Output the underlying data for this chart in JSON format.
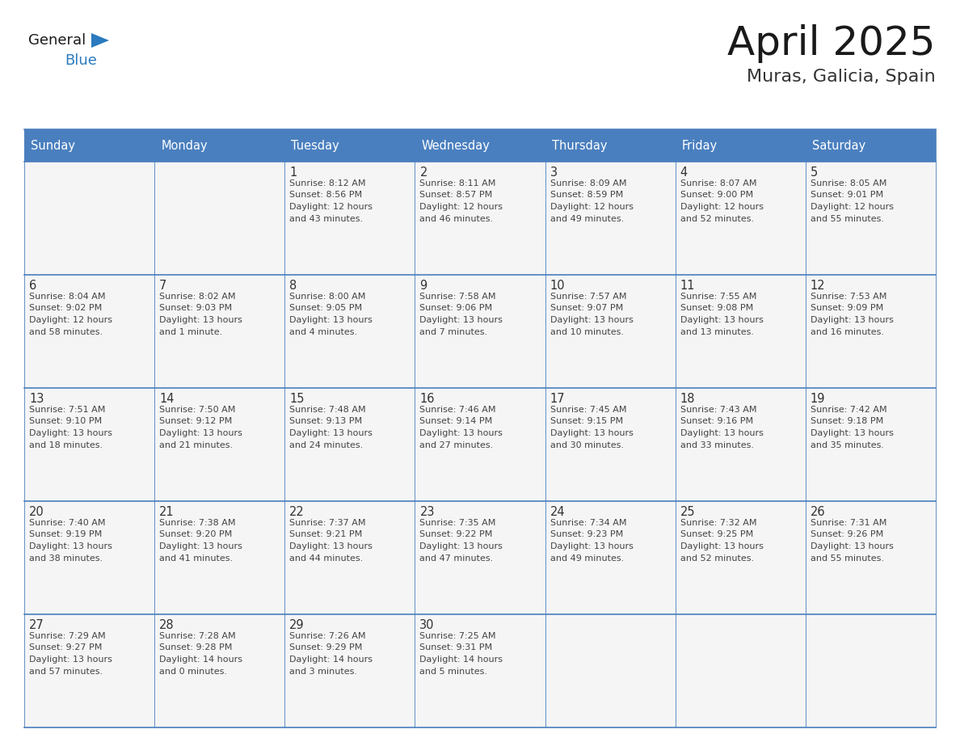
{
  "title": "April 2025",
  "subtitle": "Muras, Galicia, Spain",
  "days_of_week": [
    "Sunday",
    "Monday",
    "Tuesday",
    "Wednesday",
    "Thursday",
    "Friday",
    "Saturday"
  ],
  "header_bg": "#4a7fbf",
  "header_text": "#ffffff",
  "cell_bg": "#f5f5f5",
  "border_color": "#4a7fbf",
  "day_num_color": "#333333",
  "info_color": "#444444",
  "calendar_data": [
    [
      {
        "day": null,
        "sunrise": null,
        "sunset": null,
        "daylight": null
      },
      {
        "day": null,
        "sunrise": null,
        "sunset": null,
        "daylight": null
      },
      {
        "day": 1,
        "sunrise": "8:12 AM",
        "sunset": "8:56 PM",
        "daylight": "12 hours\nand 43 minutes."
      },
      {
        "day": 2,
        "sunrise": "8:11 AM",
        "sunset": "8:57 PM",
        "daylight": "12 hours\nand 46 minutes."
      },
      {
        "day": 3,
        "sunrise": "8:09 AM",
        "sunset": "8:59 PM",
        "daylight": "12 hours\nand 49 minutes."
      },
      {
        "day": 4,
        "sunrise": "8:07 AM",
        "sunset": "9:00 PM",
        "daylight": "12 hours\nand 52 minutes."
      },
      {
        "day": 5,
        "sunrise": "8:05 AM",
        "sunset": "9:01 PM",
        "daylight": "12 hours\nand 55 minutes."
      }
    ],
    [
      {
        "day": 6,
        "sunrise": "8:04 AM",
        "sunset": "9:02 PM",
        "daylight": "12 hours\nand 58 minutes."
      },
      {
        "day": 7,
        "sunrise": "8:02 AM",
        "sunset": "9:03 PM",
        "daylight": "13 hours\nand 1 minute."
      },
      {
        "day": 8,
        "sunrise": "8:00 AM",
        "sunset": "9:05 PM",
        "daylight": "13 hours\nand 4 minutes."
      },
      {
        "day": 9,
        "sunrise": "7:58 AM",
        "sunset": "9:06 PM",
        "daylight": "13 hours\nand 7 minutes."
      },
      {
        "day": 10,
        "sunrise": "7:57 AM",
        "sunset": "9:07 PM",
        "daylight": "13 hours\nand 10 minutes."
      },
      {
        "day": 11,
        "sunrise": "7:55 AM",
        "sunset": "9:08 PM",
        "daylight": "13 hours\nand 13 minutes."
      },
      {
        "day": 12,
        "sunrise": "7:53 AM",
        "sunset": "9:09 PM",
        "daylight": "13 hours\nand 16 minutes."
      }
    ],
    [
      {
        "day": 13,
        "sunrise": "7:51 AM",
        "sunset": "9:10 PM",
        "daylight": "13 hours\nand 18 minutes."
      },
      {
        "day": 14,
        "sunrise": "7:50 AM",
        "sunset": "9:12 PM",
        "daylight": "13 hours\nand 21 minutes."
      },
      {
        "day": 15,
        "sunrise": "7:48 AM",
        "sunset": "9:13 PM",
        "daylight": "13 hours\nand 24 minutes."
      },
      {
        "day": 16,
        "sunrise": "7:46 AM",
        "sunset": "9:14 PM",
        "daylight": "13 hours\nand 27 minutes."
      },
      {
        "day": 17,
        "sunrise": "7:45 AM",
        "sunset": "9:15 PM",
        "daylight": "13 hours\nand 30 minutes."
      },
      {
        "day": 18,
        "sunrise": "7:43 AM",
        "sunset": "9:16 PM",
        "daylight": "13 hours\nand 33 minutes."
      },
      {
        "day": 19,
        "sunrise": "7:42 AM",
        "sunset": "9:18 PM",
        "daylight": "13 hours\nand 35 minutes."
      }
    ],
    [
      {
        "day": 20,
        "sunrise": "7:40 AM",
        "sunset": "9:19 PM",
        "daylight": "13 hours\nand 38 minutes."
      },
      {
        "day": 21,
        "sunrise": "7:38 AM",
        "sunset": "9:20 PM",
        "daylight": "13 hours\nand 41 minutes."
      },
      {
        "day": 22,
        "sunrise": "7:37 AM",
        "sunset": "9:21 PM",
        "daylight": "13 hours\nand 44 minutes."
      },
      {
        "day": 23,
        "sunrise": "7:35 AM",
        "sunset": "9:22 PM",
        "daylight": "13 hours\nand 47 minutes."
      },
      {
        "day": 24,
        "sunrise": "7:34 AM",
        "sunset": "9:23 PM",
        "daylight": "13 hours\nand 49 minutes."
      },
      {
        "day": 25,
        "sunrise": "7:32 AM",
        "sunset": "9:25 PM",
        "daylight": "13 hours\nand 52 minutes."
      },
      {
        "day": 26,
        "sunrise": "7:31 AM",
        "sunset": "9:26 PM",
        "daylight": "13 hours\nand 55 minutes."
      }
    ],
    [
      {
        "day": 27,
        "sunrise": "7:29 AM",
        "sunset": "9:27 PM",
        "daylight": "13 hours\nand 57 minutes."
      },
      {
        "day": 28,
        "sunrise": "7:28 AM",
        "sunset": "9:28 PM",
        "daylight": "14 hours\nand 0 minutes."
      },
      {
        "day": 29,
        "sunrise": "7:26 AM",
        "sunset": "9:29 PM",
        "daylight": "14 hours\nand 3 minutes."
      },
      {
        "day": 30,
        "sunrise": "7:25 AM",
        "sunset": "9:31 PM",
        "daylight": "14 hours\nand 5 minutes."
      },
      {
        "day": null,
        "sunrise": null,
        "sunset": null,
        "daylight": null
      },
      {
        "day": null,
        "sunrise": null,
        "sunset": null,
        "daylight": null
      },
      {
        "day": null,
        "sunrise": null,
        "sunset": null,
        "daylight": null
      }
    ]
  ],
  "logo_color_general": "#1a1a1a",
  "logo_color_blue": "#2b7abf",
  "logo_triangle_color": "#2b7abf",
  "title_color": "#1a1a1a",
  "subtitle_color": "#333333"
}
